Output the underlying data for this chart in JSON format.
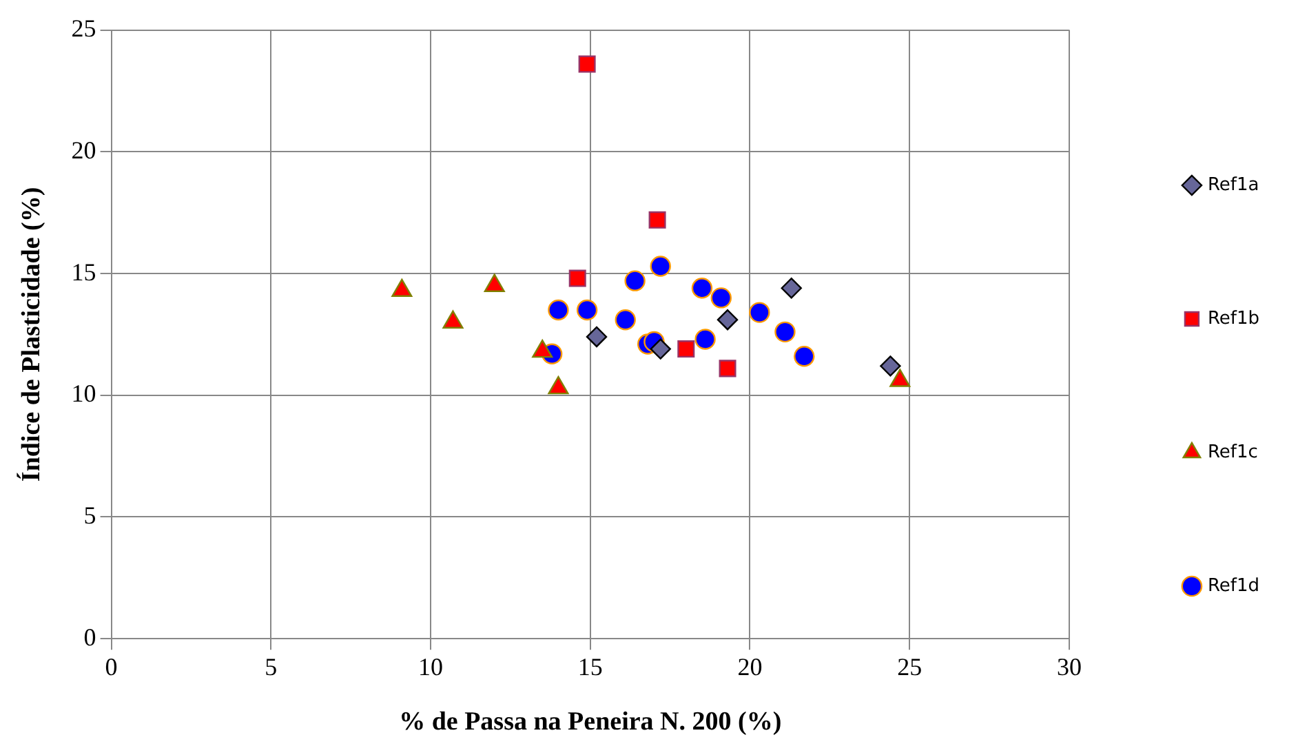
{
  "chart_data": {
    "type": "scatter",
    "xlabel": "% de Passa na Peneira N. 200 (%)",
    "ylabel": "Índice de Plasticidade (%)",
    "xlim": [
      0,
      30
    ],
    "xticks": [
      0,
      5,
      10,
      15,
      20,
      25,
      30
    ],
    "ylim": [
      0,
      25
    ],
    "yticks": [
      0,
      5,
      10,
      15,
      20,
      25
    ],
    "grid": true,
    "legend": "right",
    "series": [
      {
        "name": "Ref1a",
        "color": "#666699",
        "marker": "diamond",
        "x": [
          15.2,
          17.2,
          19.3,
          21.3,
          24.4
        ],
        "values": [
          12.4,
          11.9,
          13.1,
          14.4,
          11.2
        ]
      },
      {
        "name": "Ref1b",
        "color": "#ff0000",
        "marker": "square",
        "x": [
          14.9,
          17.1,
          14.6,
          18.0,
          19.3
        ],
        "values": [
          23.6,
          17.2,
          14.8,
          11.9,
          11.1
        ]
      },
      {
        "name": "Ref1c",
        "color": "#ff0000",
        "marker": "triangle",
        "x": [
          9.1,
          10.7,
          12.0,
          13.5,
          14.0,
          24.7
        ],
        "values": [
          14.3,
          13.0,
          14.5,
          11.8,
          10.3,
          10.6
        ]
      },
      {
        "name": "Ref1d",
        "color": "#0000ff",
        "marker": "circle",
        "x": [
          14.0,
          14.9,
          13.8,
          16.4,
          17.2,
          16.1,
          16.8,
          17.0,
          18.5,
          19.1,
          18.6,
          20.3,
          21.1,
          21.7
        ],
        "values": [
          13.5,
          13.5,
          11.7,
          14.7,
          15.3,
          13.1,
          12.1,
          12.2,
          14.4,
          14.0,
          12.3,
          13.4,
          12.6,
          11.6
        ]
      }
    ]
  }
}
